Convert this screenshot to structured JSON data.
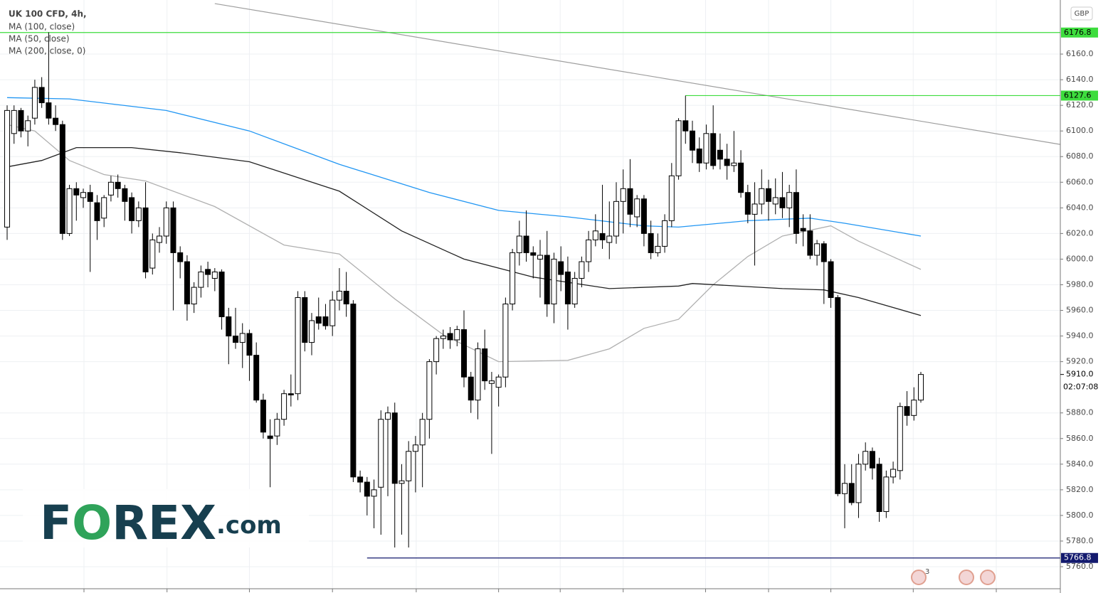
{
  "chart_data": {
    "type": "candlestick",
    "title": "UK 100 CFD, 4h,",
    "currency": "GBP",
    "ylim": [
      5742.8,
      6202.2
    ],
    "xlim": [
      -1.03,
      152.15
    ],
    "yticks": [
      {
        "value": 5760,
        "label": "5760.0"
      },
      {
        "value": 5780,
        "label": "5780.0"
      },
      {
        "value": 5800,
        "label": "5800.0"
      },
      {
        "value": 5820,
        "label": "5820.0"
      },
      {
        "value": 5840,
        "label": "5840.0"
      },
      {
        "value": 5860,
        "label": "5860.0"
      },
      {
        "value": 5880,
        "label": "5880.0"
      },
      {
        "value": 5920,
        "label": "5920.0"
      },
      {
        "value": 5940,
        "label": "5940.0"
      },
      {
        "value": 5960,
        "label": "5960.0"
      },
      {
        "value": 5980,
        "label": "5980.0"
      },
      {
        "value": 6000,
        "label": "6000.0"
      },
      {
        "value": 6020,
        "label": "6020.0"
      },
      {
        "value": 6040,
        "label": "6040.0"
      },
      {
        "value": 6060,
        "label": "6060.0"
      },
      {
        "value": 6080,
        "label": "6080.0"
      },
      {
        "value": 6100,
        "label": "6100.0"
      },
      {
        "value": 6120,
        "label": "6120.0"
      },
      {
        "value": 6140,
        "label": "6140.0"
      },
      {
        "value": 6160,
        "label": "6160.0"
      }
    ],
    "xticks": [
      11.1,
      23.1,
      35,
      47,
      59.1,
      71,
      79.9,
      89,
      100.9,
      110,
      119,
      130.9,
      142.9
    ],
    "grid": true,
    "up_color": "#ffffff",
    "down_color": "#000000",
    "candles": [
      [
        6025,
        6120,
        6015,
        6116
      ],
      [
        6098,
        6120,
        6090,
        6116
      ],
      [
        6116,
        6118,
        6095,
        6100
      ],
      [
        6100,
        6112,
        6088,
        6108
      ],
      [
        6110,
        6140,
        6105,
        6134
      ],
      [
        6134,
        6142,
        6118,
        6122
      ],
      [
        6122,
        6177,
        6105,
        6110
      ],
      [
        6110,
        6120,
        6100,
        6105
      ],
      [
        6105,
        6108,
        6015,
        6020
      ],
      [
        6020,
        6058,
        6018,
        6055
      ],
      [
        6055,
        6060,
        6030,
        6050
      ],
      [
        6048,
        6055,
        6040,
        6052
      ],
      [
        6052,
        6058,
        5990,
        6045
      ],
      [
        6044,
        6050,
        6015,
        6030
      ],
      [
        6032,
        6050,
        6025,
        6048
      ],
      [
        6050,
        6065,
        6045,
        6060
      ],
      [
        6060,
        6066,
        6048,
        6055
      ],
      [
        6055,
        6058,
        6030,
        6045
      ],
      [
        6048,
        6052,
        6020,
        6030
      ],
      [
        6030,
        6045,
        6025,
        6040
      ],
      [
        6040,
        6060,
        5985,
        5990
      ],
      [
        5993,
        6020,
        5988,
        6015
      ],
      [
        6013,
        6025,
        6005,
        6018
      ],
      [
        6018,
        6045,
        6012,
        6040
      ],
      [
        6040,
        6045,
        5960,
        6005
      ],
      [
        6005,
        6010,
        5985,
        5998
      ],
      [
        5998,
        6003,
        5952,
        5965
      ],
      [
        5965,
        5982,
        5958,
        5978
      ],
      [
        5978,
        5995,
        5970,
        5990
      ],
      [
        5992,
        5998,
        5978,
        5988
      ],
      [
        5985,
        5993,
        5975,
        5990
      ],
      [
        5990,
        5992,
        5945,
        5955
      ],
      [
        5955,
        5962,
        5918,
        5940
      ],
      [
        5940,
        5962,
        5930,
        5935
      ],
      [
        5935,
        5950,
        5915,
        5942
      ],
      [
        5942,
        5945,
        5905,
        5925
      ],
      [
        5925,
        5935,
        5888,
        5890
      ],
      [
        5890,
        5895,
        5860,
        5865
      ],
      [
        5862,
        5875,
        5822,
        5860
      ],
      [
        5862,
        5880,
        5855,
        5875
      ],
      [
        5875,
        5898,
        5870,
        5895
      ],
      [
        5895,
        5910,
        5885,
        5894
      ],
      [
        5895,
        5975,
        5890,
        5970
      ],
      [
        5970,
        5975,
        5928,
        5935
      ],
      [
        5935,
        5958,
        5925,
        5952
      ],
      [
        5955,
        5970,
        5945,
        5950
      ],
      [
        5955,
        5965,
        5945,
        5948
      ],
      [
        5948,
        5975,
        5940,
        5968
      ],
      [
        5968,
        5993,
        5960,
        5975
      ],
      [
        5975,
        5990,
        5955,
        5965
      ],
      [
        5965,
        5968,
        5826,
        5830
      ],
      [
        5830,
        5835,
        5818,
        5826
      ],
      [
        5826,
        5830,
        5800,
        5815
      ],
      [
        5815,
        5828,
        5790,
        5820
      ],
      [
        5822,
        5882,
        5785,
        5875
      ],
      [
        5875,
        5885,
        5815,
        5880
      ],
      [
        5880,
        5888,
        5775,
        5825
      ],
      [
        5825,
        5840,
        5785,
        5827
      ],
      [
        5827,
        5858,
        5775,
        5850
      ],
      [
        5850,
        5862,
        5818,
        5855
      ],
      [
        5855,
        5880,
        5822,
        5875
      ],
      [
        5875,
        5922,
        5860,
        5920
      ],
      [
        5920,
        5940,
        5910,
        5938
      ],
      [
        5938,
        5945,
        5930,
        5940
      ],
      [
        5942,
        5947,
        5930,
        5937
      ],
      [
        5937,
        5948,
        5932,
        5945
      ],
      [
        5945,
        5960,
        5900,
        5908
      ],
      [
        5908,
        5912,
        5880,
        5890
      ],
      [
        5890,
        5935,
        5875,
        5930
      ],
      [
        5930,
        5945,
        5898,
        5905
      ],
      [
        5903,
        5912,
        5848,
        5905
      ],
      [
        5900,
        5910,
        5885,
        5908
      ],
      [
        5908,
        5970,
        5900,
        5965
      ],
      [
        5965,
        6008,
        5960,
        6005
      ],
      [
        6005,
        6030,
        5995,
        6018
      ],
      [
        6018,
        6038,
        5998,
        6005
      ],
      [
        6005,
        6010,
        5985,
        6003
      ],
      [
        6000,
        6015,
        5970,
        6003
      ],
      [
        6003,
        6022,
        5955,
        5965
      ],
      [
        5965,
        6005,
        5950,
        6000
      ],
      [
        5998,
        6010,
        5975,
        5988
      ],
      [
        5990,
        6002,
        5945,
        5965
      ],
      [
        5965,
        5990,
        5962,
        5985
      ],
      [
        5985,
        6002,
        5978,
        5998
      ],
      [
        5998,
        6022,
        5990,
        6015
      ],
      [
        6015,
        6035,
        6010,
        6022
      ],
      [
        6020,
        6058,
        6008,
        6015
      ],
      [
        6013,
        6045,
        6000,
        6018
      ],
      [
        6018,
        6060,
        6012,
        6045
      ],
      [
        6045,
        6070,
        6020,
        6055
      ],
      [
        6055,
        6078,
        6025,
        6035
      ],
      [
        6033,
        6050,
        6025,
        6047
      ],
      [
        6047,
        6050,
        6010,
        6020
      ],
      [
        6020,
        6030,
        6000,
        6005
      ],
      [
        6005,
        6020,
        6002,
        6010
      ],
      [
        6010,
        6035,
        6005,
        6030
      ],
      [
        6030,
        6075,
        6025,
        6065
      ],
      [
        6065,
        6110,
        6062,
        6108
      ],
      [
        6108,
        6127.6,
        6090,
        6100
      ],
      [
        6100,
        6108,
        6075,
        6085
      ],
      [
        6086,
        6095,
        6068,
        6075
      ],
      [
        6075,
        6105,
        6070,
        6098
      ],
      [
        6098,
        6120,
        6070,
        6073
      ],
      [
        6085,
        6098,
        6070,
        6078
      ],
      [
        6078,
        6090,
        6062,
        6073
      ],
      [
        6073,
        6100,
        6068,
        6075
      ],
      [
        6075,
        6085,
        6048,
        6052
      ],
      [
        6052,
        6058,
        6028,
        6035
      ],
      [
        6035,
        6060,
        5995,
        6043
      ],
      [
        6043,
        6070,
        6035,
        6055
      ],
      [
        6055,
        6062,
        6030,
        6045
      ],
      [
        6043,
        6063,
        6035,
        6048
      ],
      [
        6048,
        6068,
        6032,
        6040
      ],
      [
        6040,
        6058,
        6025,
        6052
      ],
      [
        6052,
        6070,
        6012,
        6020
      ],
      [
        6024,
        6035,
        6010,
        6022
      ],
      [
        6022,
        6035,
        6000,
        6003
      ],
      [
        6003,
        6015,
        5995,
        6012
      ],
      [
        6012,
        6014,
        5965,
        5998
      ],
      [
        5998,
        6000,
        5962,
        5970
      ],
      [
        5970,
        5972,
        5815,
        5817
      ],
      [
        5817,
        5840,
        5790,
        5825
      ],
      [
        5825,
        5840,
        5808,
        5810
      ],
      [
        5810,
        5848,
        5798,
        5840
      ],
      [
        5840,
        5857,
        5835,
        5850
      ],
      [
        5850,
        5853,
        5828,
        5837
      ],
      [
        5840,
        5845,
        5795,
        5803
      ],
      [
        5803,
        5835,
        5798,
        5830
      ],
      [
        5830,
        5842,
        5825,
        5836
      ],
      [
        5835,
        5888,
        5828,
        5885
      ],
      [
        5885,
        5897,
        5870,
        5878
      ],
      [
        5878,
        5900,
        5874,
        5890
      ],
      [
        5890,
        5912,
        5888,
        5910
      ]
    ],
    "series": [
      {
        "name": "MA (100, close)",
        "color": "#2196f3",
        "x": [
          0,
          9,
          23,
          35,
          48,
          61,
          71,
          81,
          92,
          97,
          107,
          116,
          121,
          132
        ],
        "values": [
          6126,
          6125,
          6116,
          6100,
          6074,
          6052,
          6038,
          6033,
          6026,
          6025,
          6030,
          6032,
          6028,
          6018
        ]
      },
      {
        "name": "MA (50, close)",
        "color": "#b0b0b0",
        "x": [
          0,
          4,
          9,
          14,
          20,
          30,
          40,
          48,
          56,
          63,
          71,
          81,
          87,
          92,
          97,
          102,
          107,
          112,
          119,
          123,
          132
        ],
        "values": [
          6105,
          6100,
          6077,
          6066,
          6061,
          6041,
          6011,
          6004,
          5969,
          5941,
          5920,
          5921,
          5930,
          5946,
          5953,
          5980,
          6002,
          6018,
          6026,
          6014,
          5992
        ]
      },
      {
        "name": "MA (200, close, 0)",
        "color": "#222222",
        "x": [
          0,
          5,
          10,
          18,
          25,
          35,
          48,
          57,
          66,
          76,
          87,
          97,
          99,
          112,
          118,
          123,
          132
        ],
        "values": [
          6072,
          6077,
          6087,
          6087,
          6083,
          6076,
          6053,
          6022,
          6000,
          5986,
          5977,
          5979,
          5981,
          5977,
          5976,
          5970,
          5956
        ]
      }
    ],
    "trendline": {
      "color": "#9e9e9e",
      "x": [
        30,
        152.15
      ],
      "values": [
        6199.4,
        6089.5
      ]
    },
    "price_lines": [
      {
        "value": 6176.8,
        "color": "#3ddc3d"
      },
      {
        "value": 6127.6,
        "color": "#3ddc3d",
        "from": 98
      },
      {
        "value": 5766.8,
        "color": "#131a6e",
        "from": 52
      }
    ],
    "last_price": {
      "value": 5910,
      "label": "5910.0"
    },
    "countdown": "02:07:08",
    "event_count": "3",
    "logo": [
      "F",
      "O",
      "REX",
      ".com"
    ]
  }
}
